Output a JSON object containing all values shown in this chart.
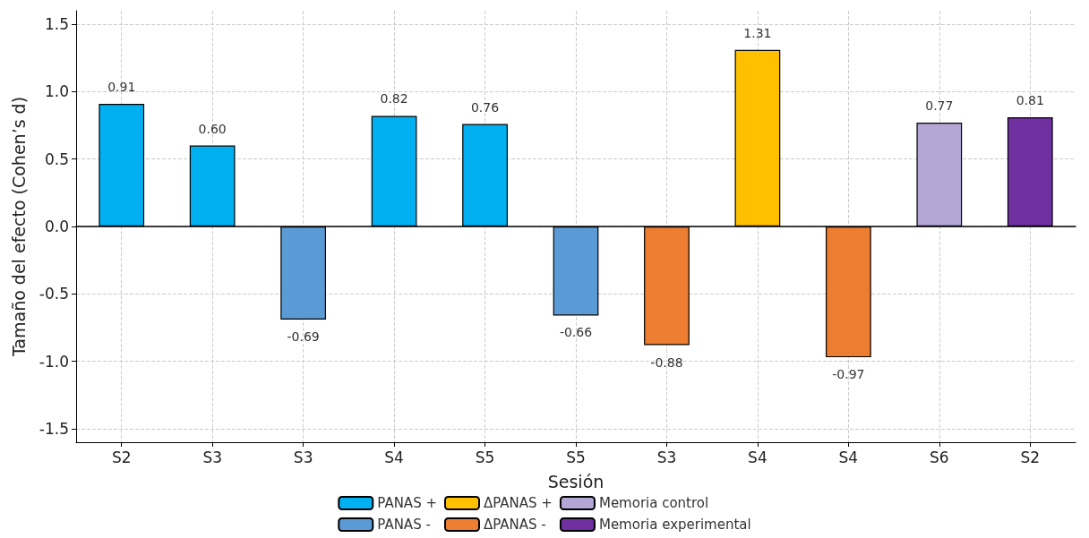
{
  "chart_data": {
    "type": "bar",
    "xlabel": "Sesión",
    "ylabel": "Tamaño del efecto (Cohen’s d)",
    "categories": [
      "S2",
      "S3",
      "S3",
      "S4",
      "S5",
      "S5",
      "S3",
      "S4",
      "S4",
      "S6",
      "S2"
    ],
    "series": [
      {
        "name": "PANAS +",
        "color": "#00b0f0",
        "values": [
          0.91,
          0.6,
          null,
          0.82,
          0.76,
          null,
          null,
          null,
          null,
          null,
          null
        ],
        "value_labels": [
          "0.91",
          "0.60",
          null,
          "0.82",
          "0.76",
          null,
          null,
          null,
          null,
          null,
          null
        ]
      },
      {
        "name": "PANAS -",
        "color": "#5b9bd5",
        "values": [
          null,
          null,
          -0.69,
          null,
          null,
          -0.66,
          null,
          null,
          null,
          null,
          null
        ],
        "value_labels": [
          null,
          null,
          "-0.69",
          null,
          null,
          "-0.66",
          null,
          null,
          null,
          null,
          null
        ]
      },
      {
        "name": "ΔPANAS +",
        "color": "#ffc000",
        "values": [
          null,
          null,
          null,
          null,
          null,
          null,
          null,
          1.31,
          null,
          null,
          null
        ],
        "value_labels": [
          null,
          null,
          null,
          null,
          null,
          null,
          null,
          "1.31",
          null,
          null,
          null
        ]
      },
      {
        "name": "ΔPANAS -",
        "color": "#ed7d31",
        "values": [
          null,
          null,
          null,
          null,
          null,
          null,
          -0.88,
          null,
          -0.97,
          null,
          null
        ],
        "value_labels": [
          null,
          null,
          null,
          null,
          null,
          null,
          "-0.88",
          null,
          "-0.97",
          null,
          null
        ]
      },
      {
        "name": "Memoria control",
        "color": "#b4a7d6",
        "values": [
          null,
          null,
          null,
          null,
          null,
          null,
          null,
          null,
          null,
          0.77,
          null
        ],
        "value_labels": [
          null,
          null,
          null,
          null,
          null,
          null,
          null,
          null,
          null,
          "0.77",
          null
        ]
      },
      {
        "name": "Memoria experimental",
        "color": "#7030a0",
        "values": [
          null,
          null,
          null,
          null,
          null,
          null,
          null,
          null,
          null,
          null,
          0.81
        ],
        "value_labels": [
          null,
          null,
          null,
          null,
          null,
          null,
          null,
          null,
          null,
          null,
          "0.81"
        ]
      }
    ],
    "ylim": [
      -1.6,
      1.6
    ],
    "yticks": [
      -1.5,
      {
        "value": -1,
        "label": "-1.0"
      },
      -0.5,
      {
        "value": 0,
        "label": "0.0"
      },
      0.5,
      {
        "value": 1,
        "label": "1.0"
      },
      1.5
    ],
    "grid": true,
    "legend": "bottom"
  }
}
